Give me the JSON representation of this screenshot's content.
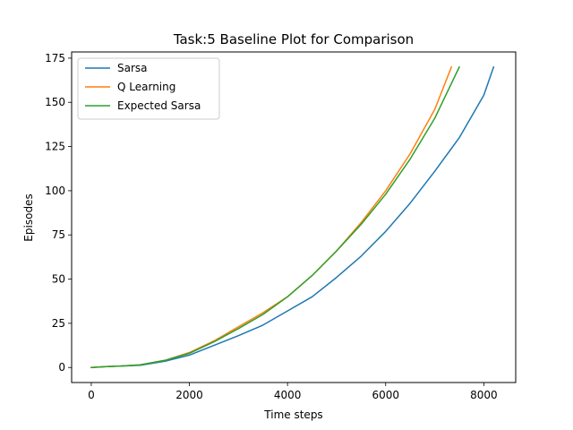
{
  "chart_data": {
    "type": "line",
    "title": "Task:5 Baseline Plot for Comparison",
    "xlabel": "Time steps",
    "ylabel": "Episodes",
    "xlim": [
      -400,
      8650
    ],
    "ylim": [
      -8.5,
      178.5
    ],
    "xticks": [
      0,
      2000,
      4000,
      6000,
      8000
    ],
    "yticks": [
      0,
      25,
      50,
      75,
      100,
      125,
      150,
      175
    ],
    "grid": false,
    "legend_position": "top-left",
    "series": [
      {
        "name": "Sarsa",
        "color": "#1f77b4",
        "points": [
          [
            0,
            0
          ],
          [
            300,
            0.5
          ],
          [
            600,
            0.8
          ],
          [
            1000,
            1.3
          ],
          [
            1500,
            3.5
          ],
          [
            2000,
            7
          ],
          [
            2500,
            12.5
          ],
          [
            3000,
            18
          ],
          [
            3500,
            24
          ],
          [
            4000,
            32
          ],
          [
            4500,
            40
          ],
          [
            5000,
            51
          ],
          [
            5500,
            63
          ],
          [
            6000,
            77
          ],
          [
            6500,
            93
          ],
          [
            7000,
            111
          ],
          [
            7500,
            130
          ],
          [
            8000,
            154
          ],
          [
            8200,
            170
          ]
        ]
      },
      {
        "name": "Q Learning",
        "color": "#ff7f0e",
        "points": [
          [
            0,
            0
          ],
          [
            300,
            0.5
          ],
          [
            600,
            0.8
          ],
          [
            1000,
            1.5
          ],
          [
            1500,
            4
          ],
          [
            2000,
            8.5
          ],
          [
            2500,
            15
          ],
          [
            3000,
            23
          ],
          [
            3500,
            31
          ],
          [
            4000,
            40
          ],
          [
            4500,
            52
          ],
          [
            5000,
            66
          ],
          [
            5500,
            82
          ],
          [
            6000,
            100
          ],
          [
            6500,
            121
          ],
          [
            7000,
            146
          ],
          [
            7340,
            170
          ]
        ]
      },
      {
        "name": "Expected Sarsa",
        "color": "#2ca02c",
        "points": [
          [
            0,
            0
          ],
          [
            300,
            0.5
          ],
          [
            600,
            0.8
          ],
          [
            1000,
            1.5
          ],
          [
            1500,
            4
          ],
          [
            2000,
            8
          ],
          [
            2500,
            14.5
          ],
          [
            3000,
            22
          ],
          [
            3500,
            30
          ],
          [
            4000,
            40
          ],
          [
            4500,
            52
          ],
          [
            5000,
            66
          ],
          [
            5500,
            81
          ],
          [
            6000,
            98
          ],
          [
            6500,
            118
          ],
          [
            7000,
            141
          ],
          [
            7500,
            170
          ]
        ]
      }
    ]
  }
}
